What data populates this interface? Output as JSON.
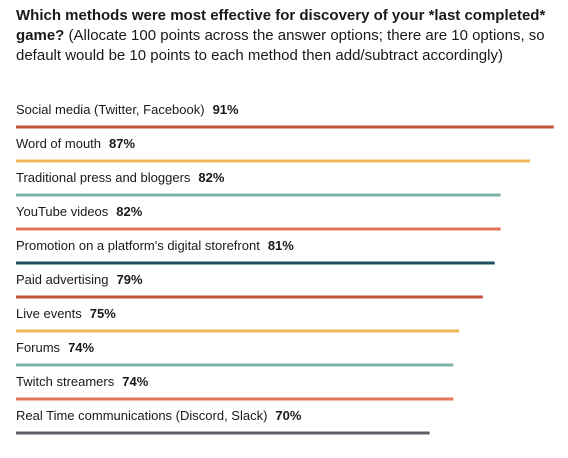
{
  "question": {
    "bold": "Which methods were most effective for discovery of your *last completed* game?",
    "note": " (Allocate 100 points across the answer options; there are 10 options, so default would be 10 points to each method then add/subtract accordingly)"
  },
  "chart_data": {
    "type": "bar",
    "orientation": "horizontal",
    "unit": "%",
    "xlim": [
      0,
      100
    ],
    "categories": [
      "Social media (Twitter, Facebook)",
      "Word of mouth",
      "Traditional press and bloggers",
      "YouTube videos",
      "Promotion on a platform's digital storefront",
      "Paid advertising",
      "Live events",
      "Forums",
      "Twitch streamers",
      "Real Time communications (Discord, Slack)"
    ],
    "values": [
      91,
      87,
      82,
      82,
      81,
      79,
      75,
      74,
      74,
      70
    ],
    "value_labels": [
      "91%",
      "87%",
      "82%",
      "82%",
      "81%",
      "79%",
      "75%",
      "74%",
      "74%",
      "70%"
    ],
    "colors": [
      "#c4553a",
      "#f0b85a",
      "#7fb3aa",
      "#e3745a",
      "#1f4f5c",
      "#c4553a",
      "#f0b85a",
      "#7fb3aa",
      "#e3745a",
      "#5a6066"
    ],
    "grid": false,
    "legend": "none"
  }
}
